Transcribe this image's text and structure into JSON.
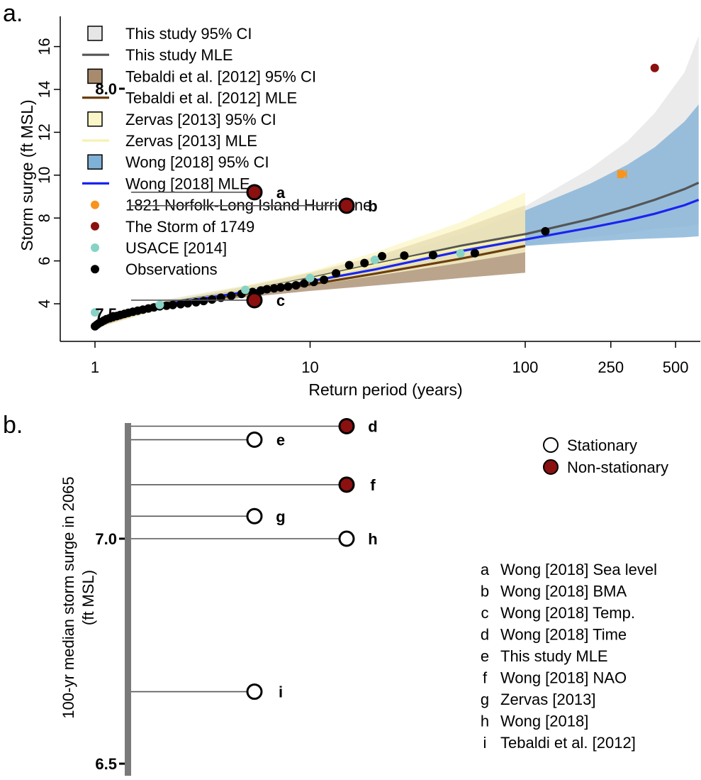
{
  "chart_data": [
    {
      "panel": "a.",
      "type": "line",
      "xlabel": "Return period (years)",
      "ylabel": "Storm surge (ft MSL)",
      "xscale": "log",
      "xlim": [
        0.75,
        640
      ],
      "ylim": [
        2.5,
        17
      ],
      "xticks": [
        {
          "value": 1,
          "label": "1"
        },
        {
          "value": 10,
          "label": "10"
        },
        {
          "value": 100,
          "label": "100"
        },
        {
          "value": 250,
          "label": "250"
        },
        {
          "value": 500,
          "label": "500"
        }
      ],
      "yticks": [
        {
          "value": 4,
          "label": "4"
        },
        {
          "value": 6,
          "label": "6"
        },
        {
          "value": 8,
          "label": "8"
        },
        {
          "value": 10,
          "label": "10"
        },
        {
          "value": 12,
          "label": "12"
        },
        {
          "value": 14,
          "label": "14"
        },
        {
          "value": 16,
          "label": "16"
        }
      ],
      "grid": false,
      "legend_position": "top-left",
      "legend": [
        {
          "label": "This study 95% CI",
          "kind": "box",
          "color": "#e6e6e6"
        },
        {
          "label": "This study MLE",
          "kind": "line",
          "color": "#555555"
        },
        {
          "label": "Tebaldi et al. [2012] 95% CI",
          "kind": "box",
          "color": "#a88b6c"
        },
        {
          "label": "Tebaldi et al. [2012] MLE",
          "kind": "line",
          "color": "#6b3e0e"
        },
        {
          "label": "Zervas [2013] 95% CI",
          "kind": "box",
          "color": "#fbf6c8"
        },
        {
          "label": "Zervas [2013] MLE",
          "kind": "line",
          "color": "#f7f2b0"
        },
        {
          "label": "Wong [2018] 95% CI",
          "kind": "box",
          "color": "#7fb0d6"
        },
        {
          "label": "Wong [2018] MLE",
          "kind": "line",
          "color": "#1a24f0"
        },
        {
          "label": "1821 Norfolk-Long Island Hurricane",
          "kind": "dot",
          "color": "#f7941d"
        },
        {
          "label": "The Storm of 1749",
          "kind": "dot",
          "color": "#8b1010"
        },
        {
          "label": "USACE [2014]",
          "kind": "dot",
          "color": "#86d3c6"
        },
        {
          "label": "Observations",
          "kind": "dot",
          "color": "#000000"
        }
      ],
      "bands": [
        {
          "name": "This study 95% CI",
          "color": "#e6e6e6",
          "x": [
            1,
            2,
            5,
            10,
            20,
            50,
            100,
            200,
            300,
            400,
            550,
            640
          ],
          "lower": [
            2.85,
            3.85,
            4.55,
            5.05,
            5.55,
            6.15,
            6.7,
            7.1,
            7.3,
            7.5,
            7.6,
            7.7
          ],
          "upper": [
            3.15,
            4.15,
            4.85,
            5.45,
            6.2,
            7.4,
            8.55,
            10.3,
            11.6,
            12.9,
            14.8,
            16.5
          ]
        },
        {
          "name": "Wong [2018] 95% CI",
          "color": "#7fb0d6",
          "x": [
            2,
            5,
            10,
            20,
            50,
            100,
            200,
            300,
            400,
            550,
            640
          ],
          "lower": [
            3.8,
            4.5,
            5.0,
            5.45,
            6.1,
            6.7,
            6.9,
            7.0,
            7.05,
            7.1,
            7.15
          ],
          "upper": [
            4.1,
            4.8,
            5.35,
            6.0,
            7.2,
            8.35,
            9.6,
            10.5,
            11.3,
            12.5,
            13.3
          ]
        },
        {
          "name": "Tebaldi et al. [2012] 95% CI",
          "color": "#a88b6c",
          "x": [
            1,
            2,
            5,
            10,
            20,
            50,
            100
          ],
          "lower": [
            2.85,
            3.75,
            4.3,
            4.6,
            4.85,
            5.2,
            5.45
          ],
          "upper": [
            3.2,
            4.05,
            4.8,
            5.45,
            6.2,
            7.5,
            8.6
          ]
        },
        {
          "name": "Zervas [2013] 95% CI",
          "color": "#fbf6c8",
          "x": [
            1,
            2,
            5,
            10,
            20,
            50,
            100
          ],
          "lower": [
            2.85,
            3.75,
            4.4,
            4.85,
            5.3,
            5.9,
            6.4
          ],
          "upper": [
            3.2,
            4.1,
            4.85,
            5.5,
            6.4,
            7.8,
            9.2
          ]
        }
      ],
      "series": [
        {
          "name": "This study MLE",
          "color": "#555555",
          "x": [
            1,
            2,
            5,
            10,
            20,
            50,
            100,
            200,
            300,
            400,
            550,
            640
          ],
          "y": [
            2.95,
            4.0,
            4.6,
            5.2,
            5.85,
            6.7,
            7.25,
            7.95,
            8.45,
            8.85,
            9.35,
            9.65
          ]
        },
        {
          "name": "Tebaldi et al. [2012] MLE",
          "color": "#6b3e0e",
          "x": [
            1,
            2,
            5,
            10,
            20,
            50,
            100
          ],
          "y": [
            2.95,
            3.9,
            4.45,
            4.9,
            5.4,
            6.1,
            6.7
          ]
        },
        {
          "name": "Zervas [2013] MLE",
          "color": "#f7f2b0",
          "x": [
            1,
            2,
            5,
            10,
            20,
            50,
            100
          ],
          "y": [
            2.95,
            3.95,
            4.6,
            5.15,
            5.8,
            6.6,
            7.15
          ]
        },
        {
          "name": "Wong [2018] MLE",
          "color": "#1a24f0",
          "x": [
            2,
            5,
            10,
            20,
            50,
            100,
            200,
            300,
            400,
            550,
            640
          ],
          "y": [
            3.95,
            4.55,
            5.05,
            5.6,
            6.45,
            7.0,
            7.55,
            7.9,
            8.2,
            8.6,
            8.85
          ]
        }
      ],
      "points": [
        {
          "name": "Observations",
          "color": "#000000",
          "x": [
            1.0,
            1.02,
            1.04,
            1.07,
            1.1,
            1.13,
            1.17,
            1.21,
            1.26,
            1.31,
            1.37,
            1.43,
            1.5,
            1.58,
            1.67,
            1.77,
            1.88,
            2.0,
            2.15,
            2.3,
            2.5,
            2.7,
            2.95,
            3.2,
            3.5,
            3.85,
            4.3,
            4.8,
            5.4,
            5.9,
            6.3,
            6.8,
            7.3,
            7.9,
            8.6,
            9.4,
            10.4,
            11.6,
            13.2,
            15.2,
            17.9,
            21.6,
            27.4,
            37.3,
            58.3,
            124
          ],
          "y": [
            2.95,
            3.02,
            3.08,
            3.15,
            3.22,
            3.28,
            3.33,
            3.38,
            3.43,
            3.48,
            3.53,
            3.58,
            3.63,
            3.68,
            3.73,
            3.78,
            3.83,
            3.88,
            3.91,
            3.94,
            3.98,
            4.02,
            4.07,
            4.13,
            4.2,
            4.28,
            4.37,
            4.46,
            4.55,
            4.62,
            4.68,
            4.72,
            4.76,
            4.8,
            4.86,
            4.95,
            5.02,
            5.12,
            5.42,
            5.8,
            5.9,
            6.22,
            6.25,
            6.27,
            6.36,
            7.38
          ]
        },
        {
          "name": "USACE [2014]",
          "color": "#86d3c6",
          "x": [
            1,
            2,
            5,
            10,
            20,
            50
          ],
          "y": [
            3.6,
            3.95,
            4.65,
            5.2,
            6.05,
            6.35
          ]
        },
        {
          "name": "The Storm of 1749",
          "color": "#8b1010",
          "x": [
            400
          ],
          "y": [
            15.0
          ]
        },
        {
          "name": "1821 Norfolk-Long Island Hurricane",
          "color": "#f7941d",
          "x": [
            280
          ],
          "y": [
            10.05
          ],
          "xerr": [
            270,
            295
          ]
        }
      ]
    },
    {
      "panel": "b.",
      "type": "scatter",
      "ylabel": "100-yr median storm surge in 2065",
      "ylabel_units": "(ft MSL)",
      "ylim": [
        6.5,
        8.0
      ],
      "yticks": [
        {
          "value": 6.5,
          "label": "6.5"
        },
        {
          "value": 7.0,
          "label": "7.0"
        },
        {
          "value": 7.5,
          "label": "7.5"
        },
        {
          "value": 8.0,
          "label": "8.0"
        }
      ],
      "legend_position": "top-right",
      "legend": [
        {
          "label": "Stationary",
          "kind": "open-circle"
        },
        {
          "label": "Non-stationary",
          "kind": "filled-circle",
          "color": "#8b1010"
        }
      ],
      "items": [
        {
          "letter": "a",
          "name": "Wong [2018] Sea level",
          "value": 7.77,
          "type": "Non-stationary",
          "column": 1
        },
        {
          "letter": "b",
          "name": "Wong [2018] BMA",
          "value": 7.74,
          "type": "Non-stationary",
          "column": 2
        },
        {
          "letter": "c",
          "name": "Wong [2018] Temp.",
          "value": 7.53,
          "type": "Non-stationary",
          "column": 1
        },
        {
          "letter": "d",
          "name": "Wong [2018] Time",
          "value": 7.25,
          "type": "Non-stationary",
          "column": 2
        },
        {
          "letter": "e",
          "name": "This study MLE",
          "value": 7.22,
          "type": "Stationary",
          "column": 1
        },
        {
          "letter": "f",
          "name": "Wong [2018] NAO",
          "value": 7.12,
          "type": "Non-stationary",
          "column": 2
        },
        {
          "letter": "g",
          "name": "Zervas [2013]",
          "value": 7.05,
          "type": "Stationary",
          "column": 1
        },
        {
          "letter": "h",
          "name": "Wong [2018]",
          "value": 7.0,
          "type": "Stationary",
          "column": 2
        },
        {
          "letter": "i",
          "name": "Tebaldi et al. [2012]",
          "value": 6.66,
          "type": "Stationary",
          "column": 1
        }
      ]
    }
  ]
}
